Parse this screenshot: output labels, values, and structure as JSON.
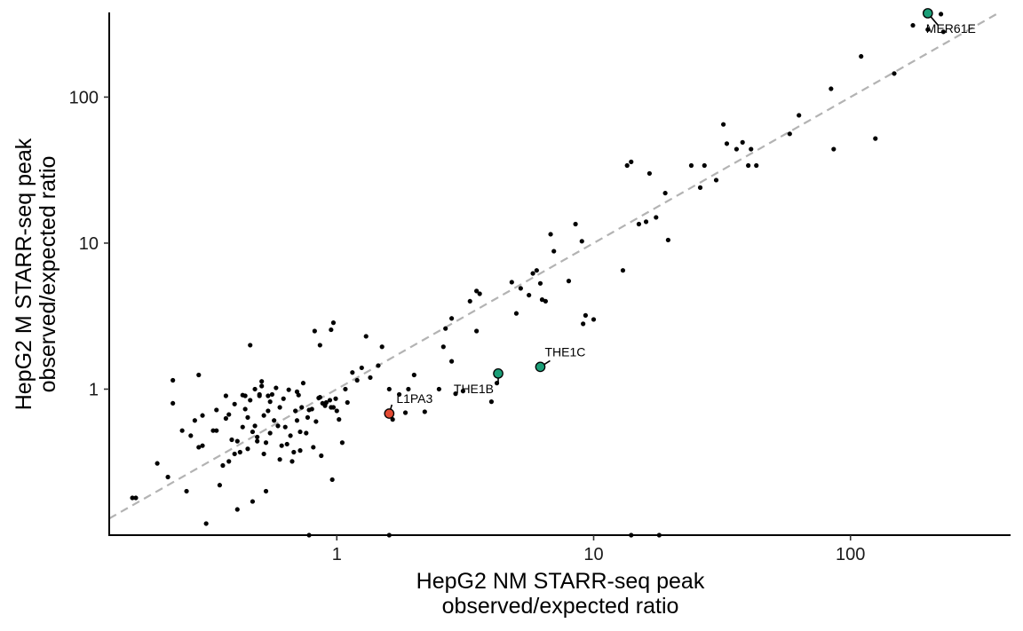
{
  "chart_data": {
    "type": "scatter",
    "title": "",
    "xlabel_lines": [
      "HepG2 NM STARR-seq peak",
      "observed/expected ratio"
    ],
    "ylabel_lines": [
      "HepG2 M STARR-seq peak",
      "observed/expected ratio"
    ],
    "x_scale": "log10",
    "y_scale": "log10",
    "xlim": [
      0.13,
      420
    ],
    "ylim": [
      0.1,
      380
    ],
    "x_ticks": [
      1,
      10,
      100
    ],
    "x_tick_labels": [
      "1",
      "10",
      "100"
    ],
    "y_ticks": [
      1,
      10,
      100
    ],
    "y_tick_labels": [
      "1",
      "10",
      "100"
    ],
    "grid": false,
    "reference_line": "y = x",
    "point_color": "#000000",
    "annotated_point_colors": {
      "teal": "#1b9e77",
      "red": "#e34a33"
    },
    "points": [
      {
        "x": 0.16,
        "y": 0.18
      },
      {
        "x": 0.165,
        "y": 0.18
      },
      {
        "x": 0.2,
        "y": 0.31
      },
      {
        "x": 0.22,
        "y": 0.25
      },
      {
        "x": 0.23,
        "y": 1.15
      },
      {
        "x": 0.23,
        "y": 0.8
      },
      {
        "x": 0.25,
        "y": 0.52
      },
      {
        "x": 0.26,
        "y": 0.2
      },
      {
        "x": 0.27,
        "y": 0.48
      },
      {
        "x": 0.28,
        "y": 0.61
      },
      {
        "x": 0.29,
        "y": 0.4
      },
      {
        "x": 0.29,
        "y": 1.25
      },
      {
        "x": 0.3,
        "y": 0.66
      },
      {
        "x": 0.3,
        "y": 0.41
      },
      {
        "x": 0.31,
        "y": 0.12
      },
      {
        "x": 0.33,
        "y": 0.52
      },
      {
        "x": 0.34,
        "y": 0.72
      },
      {
        "x": 0.34,
        "y": 0.52
      },
      {
        "x": 0.35,
        "y": 0.22
      },
      {
        "x": 0.36,
        "y": 0.3
      },
      {
        "x": 0.37,
        "y": 0.63
      },
      {
        "x": 0.37,
        "y": 0.9
      },
      {
        "x": 0.38,
        "y": 0.32
      },
      {
        "x": 0.38,
        "y": 0.67
      },
      {
        "x": 0.39,
        "y": 0.45
      },
      {
        "x": 0.4,
        "y": 0.36
      },
      {
        "x": 0.4,
        "y": 0.79
      },
      {
        "x": 0.41,
        "y": 0.44
      },
      {
        "x": 0.41,
        "y": 0.15
      },
      {
        "x": 0.42,
        "y": 0.37
      },
      {
        "x": 0.43,
        "y": 0.55
      },
      {
        "x": 0.43,
        "y": 0.91
      },
      {
        "x": 0.44,
        "y": 0.73
      },
      {
        "x": 0.44,
        "y": 0.9
      },
      {
        "x": 0.45,
        "y": 0.64
      },
      {
        "x": 0.45,
        "y": 0.39
      },
      {
        "x": 0.46,
        "y": 0.84
      },
      {
        "x": 0.46,
        "y": 2.0
      },
      {
        "x": 0.47,
        "y": 0.51
      },
      {
        "x": 0.47,
        "y": 0.17
      },
      {
        "x": 0.48,
        "y": 1.0
      },
      {
        "x": 0.48,
        "y": 0.56
      },
      {
        "x": 0.49,
        "y": 0.47
      },
      {
        "x": 0.49,
        "y": 0.44
      },
      {
        "x": 0.5,
        "y": 0.92
      },
      {
        "x": 0.5,
        "y": 0.9
      },
      {
        "x": 0.51,
        "y": 1.13
      },
      {
        "x": 0.51,
        "y": 1.05
      },
      {
        "x": 0.52,
        "y": 0.66
      },
      {
        "x": 0.52,
        "y": 0.36
      },
      {
        "x": 0.53,
        "y": 0.2
      },
      {
        "x": 0.53,
        "y": 0.43
      },
      {
        "x": 0.54,
        "y": 0.71
      },
      {
        "x": 0.54,
        "y": 0.9
      },
      {
        "x": 0.55,
        "y": 0.5
      },
      {
        "x": 0.55,
        "y": 0.82
      },
      {
        "x": 0.56,
        "y": 0.92
      },
      {
        "x": 0.57,
        "y": 0.61
      },
      {
        "x": 0.58,
        "y": 1.02
      },
      {
        "x": 0.59,
        "y": 0.56
      },
      {
        "x": 0.6,
        "y": 0.75
      },
      {
        "x": 0.6,
        "y": 0.33
      },
      {
        "x": 0.61,
        "y": 0.41
      },
      {
        "x": 0.62,
        "y": 0.86
      },
      {
        "x": 0.63,
        "y": 0.55
      },
      {
        "x": 0.64,
        "y": 0.42
      },
      {
        "x": 0.65,
        "y": 0.99
      },
      {
        "x": 0.66,
        "y": 0.48
      },
      {
        "x": 0.67,
        "y": 0.32
      },
      {
        "x": 0.68,
        "y": 0.37
      },
      {
        "x": 0.69,
        "y": 0.71
      },
      {
        "x": 0.7,
        "y": 0.61
      },
      {
        "x": 0.7,
        "y": 0.96
      },
      {
        "x": 0.71,
        "y": 0.91
      },
      {
        "x": 0.72,
        "y": 0.38
      },
      {
        "x": 0.72,
        "y": 0.51
      },
      {
        "x": 0.73,
        "y": 0.75
      },
      {
        "x": 0.74,
        "y": 1.1
      },
      {
        "x": 0.76,
        "y": 0.5
      },
      {
        "x": 0.77,
        "y": 0.64
      },
      {
        "x": 0.78,
        "y": 0.72
      },
      {
        "x": 0.8,
        "y": 0.73
      },
      {
        "x": 0.81,
        "y": 0.4
      },
      {
        "x": 0.83,
        "y": 0.6
      },
      {
        "x": 0.85,
        "y": 0.87
      },
      {
        "x": 0.86,
        "y": 0.88
      },
      {
        "x": 0.87,
        "y": 0.35
      },
      {
        "x": 0.88,
        "y": 0.8
      },
      {
        "x": 0.9,
        "y": 0.77
      },
      {
        "x": 0.91,
        "y": 0.81
      },
      {
        "x": 0.94,
        "y": 0.84
      },
      {
        "x": 0.95,
        "y": 0.75
      },
      {
        "x": 0.97,
        "y": 0.75
      },
      {
        "x": 0.99,
        "y": 0.86
      },
      {
        "x": 1.0,
        "y": 0.71
      },
      {
        "x": 1.02,
        "y": 0.62
      },
      {
        "x": 1.05,
        "y": 0.43
      },
      {
        "x": 0.96,
        "y": 0.24
      },
      {
        "x": 1.3,
        "y": 2.3
      },
      {
        "x": 0.95,
        "y": 2.55
      },
      {
        "x": 0.82,
        "y": 2.5
      },
      {
        "x": 0.86,
        "y": 2.0
      },
      {
        "x": 0.97,
        "y": 2.85
      },
      {
        "x": 1.08,
        "y": 1.0
      },
      {
        "x": 1.1,
        "y": 0.81
      },
      {
        "x": 1.15,
        "y": 1.3
      },
      {
        "x": 1.2,
        "y": 1.15
      },
      {
        "x": 1.25,
        "y": 1.4
      },
      {
        "x": 1.35,
        "y": 1.2
      },
      {
        "x": 1.45,
        "y": 1.45
      },
      {
        "x": 1.5,
        "y": 1.95
      },
      {
        "x": 1.6,
        "y": 1.0
      },
      {
        "x": 1.65,
        "y": 0.62
      },
      {
        "x": 1.75,
        "y": 0.92
      },
      {
        "x": 1.85,
        "y": 0.69
      },
      {
        "x": 1.9,
        "y": 1.0
      },
      {
        "x": 2.0,
        "y": 1.25
      },
      {
        "x": 2.2,
        "y": 0.7
      },
      {
        "x": 2.6,
        "y": 1.95
      },
      {
        "x": 2.65,
        "y": 2.6
      },
      {
        "x": 2.8,
        "y": 3.05
      },
      {
        "x": 2.9,
        "y": 0.93
      },
      {
        "x": 3.3,
        "y": 4.0
      },
      {
        "x": 3.5,
        "y": 4.7
      },
      {
        "x": 3.6,
        "y": 4.5
      },
      {
        "x": 2.5,
        "y": 1.0
      },
      {
        "x": 2.8,
        "y": 1.55
      },
      {
        "x": 3.1,
        "y": 0.97
      },
      {
        "x": 3.5,
        "y": 2.5
      },
      {
        "x": 4.2,
        "y": 1.1
      },
      {
        "x": 4.0,
        "y": 0.82
      },
      {
        "x": 4.8,
        "y": 5.4
      },
      {
        "x": 5.0,
        "y": 3.3
      },
      {
        "x": 5.2,
        "y": 4.9
      },
      {
        "x": 5.6,
        "y": 4.4
      },
      {
        "x": 5.8,
        "y": 6.2
      },
      {
        "x": 6.0,
        "y": 6.5
      },
      {
        "x": 6.2,
        "y": 5.3
      },
      {
        "x": 6.3,
        "y": 4.1
      },
      {
        "x": 6.5,
        "y": 4.0
      },
      {
        "x": 6.8,
        "y": 11.5
      },
      {
        "x": 7.0,
        "y": 8.8
      },
      {
        "x": 8.0,
        "y": 5.5
      },
      {
        "x": 8.5,
        "y": 13.5
      },
      {
        "x": 9.0,
        "y": 10.3
      },
      {
        "x": 9.3,
        "y": 3.2
      },
      {
        "x": 9.1,
        "y": 2.8
      },
      {
        "x": 10.0,
        "y": 3.0
      },
      {
        "x": 13.0,
        "y": 6.5
      },
      {
        "x": 13.5,
        "y": 34.0
      },
      {
        "x": 14.0,
        "y": 36.0
      },
      {
        "x": 15.0,
        "y": 13.5
      },
      {
        "x": 16.0,
        "y": 14.0
      },
      {
        "x": 16.5,
        "y": 30.0
      },
      {
        "x": 17.5,
        "y": 15.0
      },
      {
        "x": 19.0,
        "y": 22.0
      },
      {
        "x": 19.5,
        "y": 10.5
      },
      {
        "x": 24.0,
        "y": 34.0
      },
      {
        "x": 26.0,
        "y": 24.0
      },
      {
        "x": 27.0,
        "y": 34.0
      },
      {
        "x": 30.0,
        "y": 27.0
      },
      {
        "x": 32.0,
        "y": 65.0
      },
      {
        "x": 33.0,
        "y": 48.0
      },
      {
        "x": 36.0,
        "y": 44.0
      },
      {
        "x": 38.0,
        "y": 49.0
      },
      {
        "x": 40.0,
        "y": 34.0
      },
      {
        "x": 41.0,
        "y": 44.0
      },
      {
        "x": 43.0,
        "y": 34.0
      },
      {
        "x": 58.0,
        "y": 56.0
      },
      {
        "x": 63.0,
        "y": 75.0
      },
      {
        "x": 84.0,
        "y": 114.0
      },
      {
        "x": 86.0,
        "y": 44.0
      },
      {
        "x": 110.0,
        "y": 190.0
      },
      {
        "x": 125.0,
        "y": 52.0
      },
      {
        "x": 148.0,
        "y": 145.0
      },
      {
        "x": 175.0,
        "y": 310.0
      },
      {
        "x": 200.0,
        "y": 290.0
      },
      {
        "x": 225.0,
        "y": 370.0
      },
      {
        "x": 230.0,
        "y": 280.0
      },
      {
        "x": 0.78,
        "y": 0.1
      },
      {
        "x": 1.6,
        "y": 0.1
      },
      {
        "x": 14.0,
        "y": 0.1
      },
      {
        "x": 18.0,
        "y": 0.1
      }
    ],
    "annotated_points": [
      {
        "label": "MER61E",
        "x": 200,
        "y": 375,
        "color": "#1b9e77"
      },
      {
        "label": "THE1C",
        "x": 6.2,
        "y": 1.42,
        "color": "#1b9e77"
      },
      {
        "label": "THE1B",
        "x": 4.25,
        "y": 1.28,
        "color": "#1b9e77"
      },
      {
        "label": "L1PA3",
        "x": 1.6,
        "y": 0.68,
        "color": "#e34a33"
      }
    ]
  }
}
